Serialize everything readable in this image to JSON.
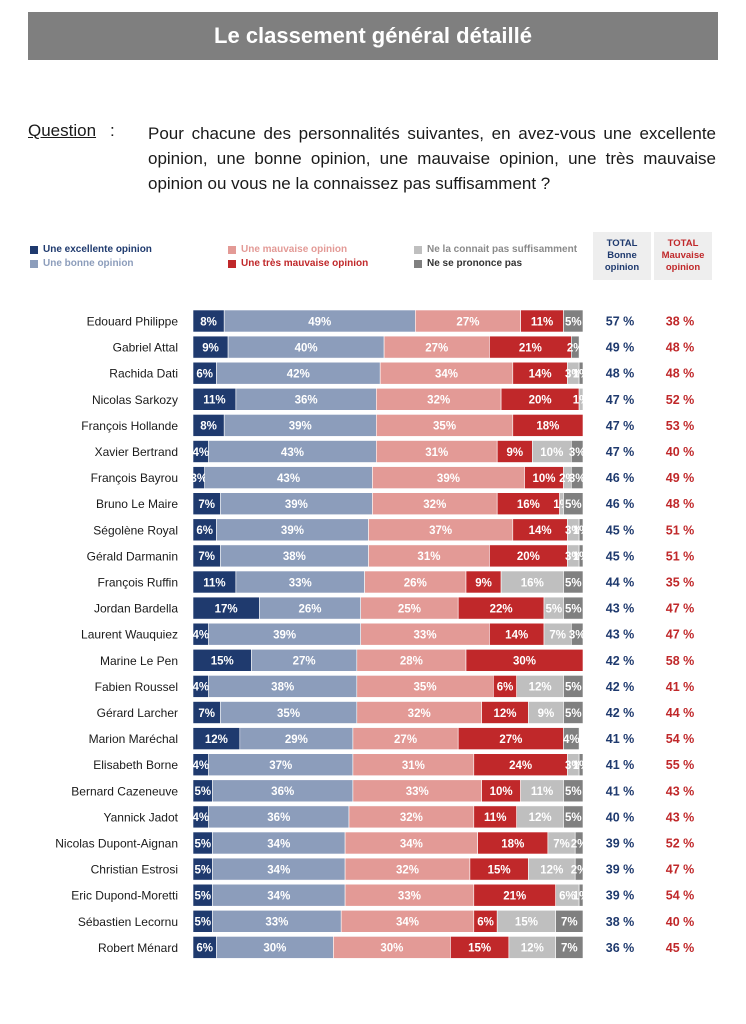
{
  "title": "Le classement général détaillé",
  "question": {
    "label": "Question",
    "colon": ":",
    "text": "Pour chacune des personnalités suivantes, en avez-vous une excellente opinion, une bonne opinion, une mauvaise opinion, une très mauvaise opinion ou vous ne la connaissez pas suffisamment ?"
  },
  "legend": [
    {
      "label": "Une excellente opinion",
      "color": "#1f3a6e"
    },
    {
      "label": "Une bonne opinion",
      "color": "#8c9dbb"
    },
    {
      "label": "Une mauvaise opinion",
      "color": "#e39a96"
    },
    {
      "label": "Une très mauvaise opinion",
      "color": "#c0282a"
    },
    {
      "label": "Ne la connait pas suffisamment",
      "color": "#bfbfbf"
    },
    {
      "label": "Ne se prononce pas",
      "color": "#808080"
    }
  ],
  "totals_headers": {
    "good": {
      "line1": "TOTAL",
      "line2": "Bonne",
      "line3": "opinion",
      "color": "#1f3a6e"
    },
    "bad": {
      "line1": "TOTAL",
      "line2": "Mauvaise",
      "line3": "opinion",
      "color": "#c0282a"
    }
  },
  "chart_data": {
    "type": "bar",
    "stacked": true,
    "orientation": "horizontal",
    "unit": "%",
    "segment_names": [
      "Une excellente opinion",
      "Une bonne opinion",
      "Une mauvaise opinion",
      "Une très mauvaise opinion",
      "Ne la connait pas suffisamment",
      "Ne se prononce pas"
    ],
    "segment_colors": [
      "#1f3a6e",
      "#8c9dbb",
      "#e39a96",
      "#c0282a",
      "#bfbfbf",
      "#808080"
    ],
    "rows": [
      {
        "name": "Edouard Philippe",
        "values": [
          8,
          49,
          27,
          11,
          0,
          5
        ],
        "good": 57,
        "bad": 38
      },
      {
        "name": "Gabriel Attal",
        "values": [
          9,
          40,
          27,
          21,
          0,
          2
        ],
        "good": 49,
        "bad": 48
      },
      {
        "name": "Rachida Dati",
        "values": [
          6,
          42,
          34,
          14,
          3,
          1
        ],
        "good": 48,
        "bad": 48
      },
      {
        "name": "Nicolas Sarkozy",
        "values": [
          11,
          36,
          32,
          20,
          1,
          0
        ],
        "good": 47,
        "bad": 52
      },
      {
        "name": "François Hollande",
        "values": [
          8,
          39,
          35,
          18,
          0,
          0
        ],
        "good": 47,
        "bad": 53
      },
      {
        "name": "Xavier Bertrand",
        "values": [
          4,
          43,
          31,
          9,
          10,
          3
        ],
        "good": 47,
        "bad": 40
      },
      {
        "name": "François Bayrou",
        "values": [
          3,
          43,
          39,
          10,
          2,
          3
        ],
        "good": 46,
        "bad": 49
      },
      {
        "name": "Bruno Le Maire",
        "values": [
          7,
          39,
          32,
          16,
          1,
          5
        ],
        "good": 46,
        "bad": 48
      },
      {
        "name": "Ségolène Royal",
        "values": [
          6,
          39,
          37,
          14,
          3,
          1
        ],
        "good": 45,
        "bad": 51
      },
      {
        "name": "Gérald Darmanin",
        "values": [
          7,
          38,
          31,
          20,
          3,
          1
        ],
        "good": 45,
        "bad": 51
      },
      {
        "name": "François Ruffin",
        "values": [
          11,
          33,
          26,
          9,
          16,
          5
        ],
        "good": 44,
        "bad": 35
      },
      {
        "name": "Jordan Bardella",
        "values": [
          17,
          26,
          25,
          22,
          5,
          5
        ],
        "good": 43,
        "bad": 47
      },
      {
        "name": "Laurent Wauquiez",
        "values": [
          4,
          39,
          33,
          14,
          7,
          3
        ],
        "good": 43,
        "bad": 47
      },
      {
        "name": "Marine Le Pen",
        "values": [
          15,
          27,
          28,
          30,
          0,
          0
        ],
        "good": 42,
        "bad": 58
      },
      {
        "name": "Fabien Roussel",
        "values": [
          4,
          38,
          35,
          6,
          12,
          5
        ],
        "good": 42,
        "bad": 41
      },
      {
        "name": "Gérard Larcher",
        "values": [
          7,
          35,
          32,
          12,
          9,
          5
        ],
        "good": 42,
        "bad": 44
      },
      {
        "name": "Marion Maréchal",
        "values": [
          12,
          29,
          27,
          27,
          0,
          4
        ],
        "good": 41,
        "bad": 54
      },
      {
        "name": "Elisabeth Borne",
        "values": [
          4,
          37,
          31,
          24,
          3,
          1
        ],
        "good": 41,
        "bad": 55
      },
      {
        "name": "Bernard Cazeneuve",
        "values": [
          5,
          36,
          33,
          10,
          11,
          5
        ],
        "good": 41,
        "bad": 43
      },
      {
        "name": "Yannick Jadot",
        "values": [
          4,
          36,
          32,
          11,
          12,
          5
        ],
        "good": 40,
        "bad": 43
      },
      {
        "name": "Nicolas Dupont-Aignan",
        "values": [
          5,
          34,
          34,
          18,
          7,
          2
        ],
        "good": 39,
        "bad": 52
      },
      {
        "name": "Christian Estrosi",
        "values": [
          5,
          34,
          32,
          15,
          12,
          2
        ],
        "good": 39,
        "bad": 47
      },
      {
        "name": "Eric Dupond-Moretti",
        "values": [
          5,
          34,
          33,
          21,
          6,
          1
        ],
        "good": 39,
        "bad": 54
      },
      {
        "name": "Sébastien Lecornu",
        "values": [
          5,
          33,
          34,
          6,
          15,
          7
        ],
        "good": 38,
        "bad": 40
      },
      {
        "name": "Robert Ménard",
        "values": [
          6,
          30,
          30,
          15,
          12,
          7
        ],
        "good": 36,
        "bad": 45
      }
    ]
  }
}
